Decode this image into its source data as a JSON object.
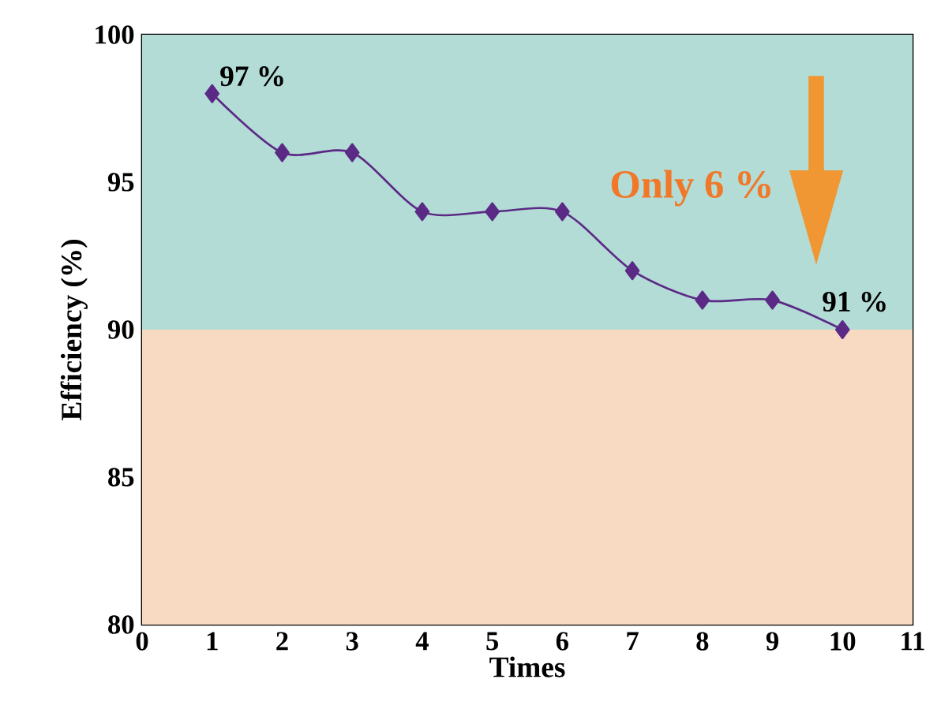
{
  "chart_data": {
    "type": "line",
    "xlabel": "Times",
    "ylabel": "Efficiency (%)",
    "x": [
      1,
      2,
      3,
      4,
      5,
      6,
      7,
      8,
      9,
      10
    ],
    "series": [
      {
        "color": "#5b2a86",
        "values": [
          98,
          96,
          96,
          94,
          94,
          94,
          92,
          91,
          91,
          90
        ]
      }
    ],
    "marker": "diamond",
    "line_style": "solid",
    "xlim": [
      0,
      11
    ],
    "xticks": [
      0,
      1,
      2,
      3,
      4,
      5,
      6,
      7,
      8,
      9,
      10,
      11
    ],
    "ylim": [
      80,
      100
    ],
    "yticks": [
      80,
      85,
      90,
      95,
      100
    ],
    "bands": [
      {
        "axis": "y",
        "from": 90,
        "to": 100,
        "color": "#b3dcd6"
      },
      {
        "axis": "y",
        "from": 80,
        "to": 90,
        "color": "#f8d9c2"
      }
    ],
    "annotations": [
      {
        "text": "97 %",
        "x": 1,
        "y": 98
      },
      {
        "text": "91 %",
        "x": 10,
        "y": 90
      },
      "Only 6 %"
    ]
  }
}
